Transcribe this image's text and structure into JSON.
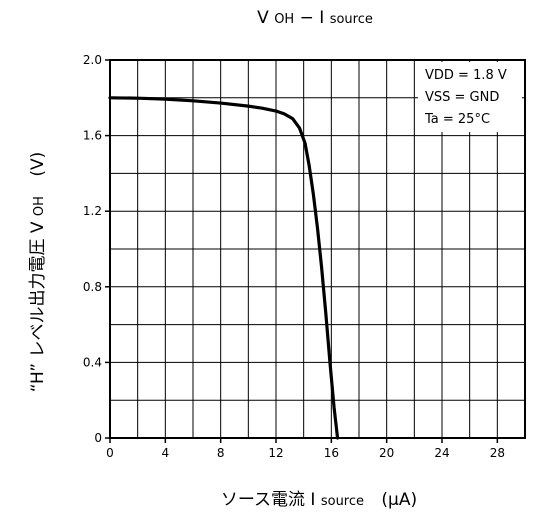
{
  "chart_data": {
    "type": "line",
    "title": {
      "main": "V",
      "main_sub": "OH",
      "sep": " − ",
      "second": "I",
      "second_sub": "source"
    },
    "xlabel": {
      "prefix": "ソース電流",
      "symbol": "I",
      "symbol_sub": "source",
      "unit": "(µA)"
    },
    "ylabel": {
      "prefix": "“H” レベル出力電圧",
      "symbol": "V",
      "symbol_sub": "OH",
      "unit": "(V)"
    },
    "xlim": [
      0,
      30
    ],
    "ylim": [
      0,
      2.0
    ],
    "x_ticks": [
      0,
      4,
      8,
      12,
      16,
      20,
      24,
      28
    ],
    "x_tick_labels": [
      "0",
      "4",
      "8",
      "12",
      "16",
      "20",
      "24",
      "28"
    ],
    "y_ticks": [
      0,
      0.4,
      0.8,
      1.2,
      1.6,
      2.0
    ],
    "y_tick_labels": [
      "0",
      "0.4",
      "0.8",
      "1.2",
      "1.6",
      "2.0"
    ],
    "grid": true,
    "legend_position": "top-right",
    "legend_lines": [
      "VDD = 1.8 V",
      "VSS = GND",
      "Ta = 25°C"
    ],
    "series": [
      {
        "name": "",
        "x": [
          0,
          2,
          4,
          6,
          8,
          10,
          11,
          12,
          12.6,
          13.2,
          13.7,
          14.1,
          14.4,
          14.7,
          15.0,
          15.3,
          15.6,
          15.9,
          16.2,
          16.45
        ],
        "y": [
          1.8,
          1.798,
          1.793,
          1.784,
          1.772,
          1.756,
          1.745,
          1.73,
          1.715,
          1.69,
          1.64,
          1.56,
          1.44,
          1.29,
          1.11,
          0.9,
          0.66,
          0.4,
          0.16,
          0.0
        ]
      }
    ],
    "colors": {
      "line": "#000000",
      "grid": "#000000",
      "background": "#ffffff"
    }
  }
}
